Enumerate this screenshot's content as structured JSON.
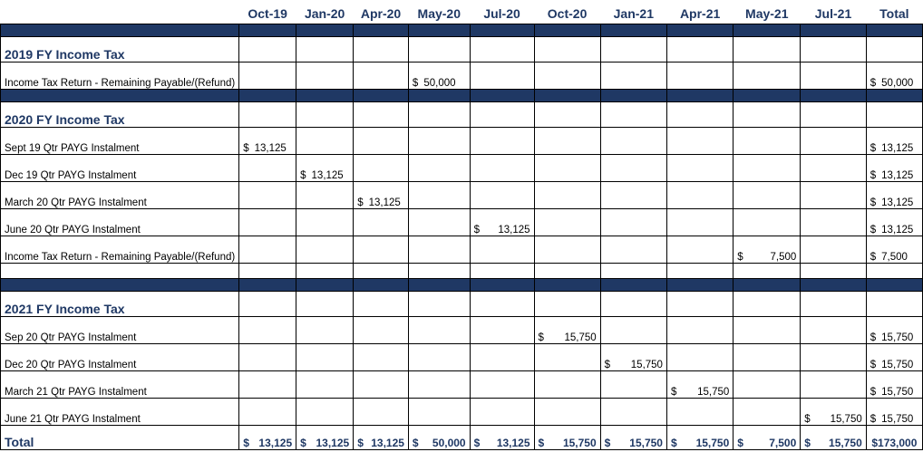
{
  "columns": [
    "Oct-19",
    "Jan-20",
    "Apr-20",
    "May-20",
    "Jul-20",
    "Oct-20",
    "Jan-21",
    "Apr-21",
    "May-21",
    "Jul-21",
    "Total"
  ],
  "sections": {
    "fy2019": {
      "title": "2019 FY Income Tax",
      "rows": [
        {
          "label": "Income Tax Return - Remaining Payable/(Refund)",
          "May-20": "50,000",
          "Total": "50,000"
        }
      ]
    },
    "fy2020": {
      "title": "2020 FY Income Tax",
      "rows": [
        {
          "label": "Sept 19 Qtr PAYG Instalment",
          "Oct-19": "13,125",
          "Total": "13,125"
        },
        {
          "label": "Dec 19 Qtr PAYG Instalment",
          "Jan-20": "13,125",
          "Total": "13,125"
        },
        {
          "label": "March 20 Qtr PAYG Instalment",
          "Apr-20": "13,125",
          "Total": "13,125"
        },
        {
          "label": "June 20 Qtr PAYG Instalment",
          "Jul-20": "13,125",
          "Total": "13,125"
        },
        {
          "label": "Income Tax Return - Remaining Payable/(Refund)",
          "May-21": "7,500",
          "Total": "7,500"
        }
      ]
    },
    "fy2021": {
      "title": "2021 FY Income Tax",
      "rows": [
        {
          "label": "Sep 20 Qtr PAYG Instalment",
          "Oct-20": "15,750",
          "Total": "15,750"
        },
        {
          "label": "Dec 20 Qtr PAYG Instalment",
          "Jan-21": "15,750",
          "Total": "15,750"
        },
        {
          "label": "March 21 Qtr PAYG Instalment",
          "Apr-21": "15,750",
          "Total": "15,750"
        },
        {
          "label": "June 21 Qtr PAYG Instalment",
          "Jul-21": "15,750",
          "Total": "15,750"
        }
      ]
    }
  },
  "currency": "$",
  "total_row": {
    "label": "Total",
    "values": [
      "13,125",
      "13,125",
      "13,125",
      "50,000",
      "13,125",
      "15,750",
      "15,750",
      "15,750",
      "7,500",
      "15,750",
      "$173,000"
    ]
  },
  "colors": {
    "band": "#1f3864",
    "header_text": "#1f3864"
  }
}
